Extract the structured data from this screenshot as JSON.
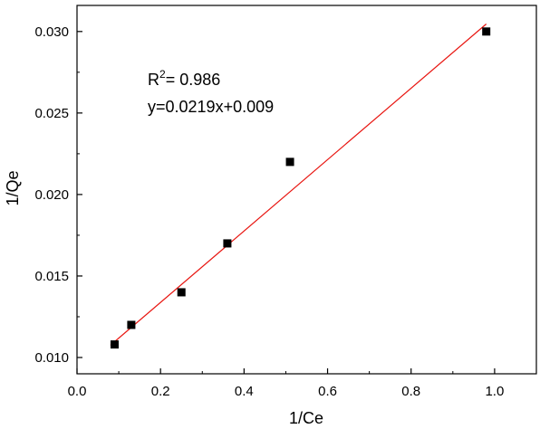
{
  "chart_data": {
    "type": "scatter",
    "title": "",
    "xlabel": "1/Ce",
    "ylabel": "1/Qe",
    "xlim": [
      0.0,
      1.1
    ],
    "ylim": [
      0.009,
      0.0316
    ],
    "xticks": [
      0.0,
      0.2,
      0.4,
      0.6,
      0.8,
      1.0
    ],
    "xtick_labels": [
      "0.0",
      "0.2",
      "0.4",
      "0.6",
      "0.8",
      "1.0"
    ],
    "yticks": [
      0.01,
      0.015,
      0.02,
      0.025,
      0.03
    ],
    "ytick_labels": [
      "0.010",
      "0.015",
      "0.020",
      "0.025",
      "0.030"
    ],
    "grid": false,
    "legend": "none",
    "series": [
      {
        "type": "scatter",
        "marker": "square",
        "color": "#000000",
        "x": [
          0.09,
          0.13,
          0.25,
          0.36,
          0.51,
          0.98
        ],
        "y": [
          0.0108,
          0.012,
          0.014,
          0.017,
          0.022,
          0.03
        ]
      },
      {
        "type": "line",
        "color": "#e8140f",
        "slope": 0.0219,
        "intercept": 0.009,
        "x_range": [
          0.08,
          0.98
        ]
      }
    ],
    "annotations": {
      "r2_base": "R",
      "r2_sup": "2",
      "r2_value": "= 0.986",
      "equation": "y=0.0219x+0.009"
    }
  }
}
